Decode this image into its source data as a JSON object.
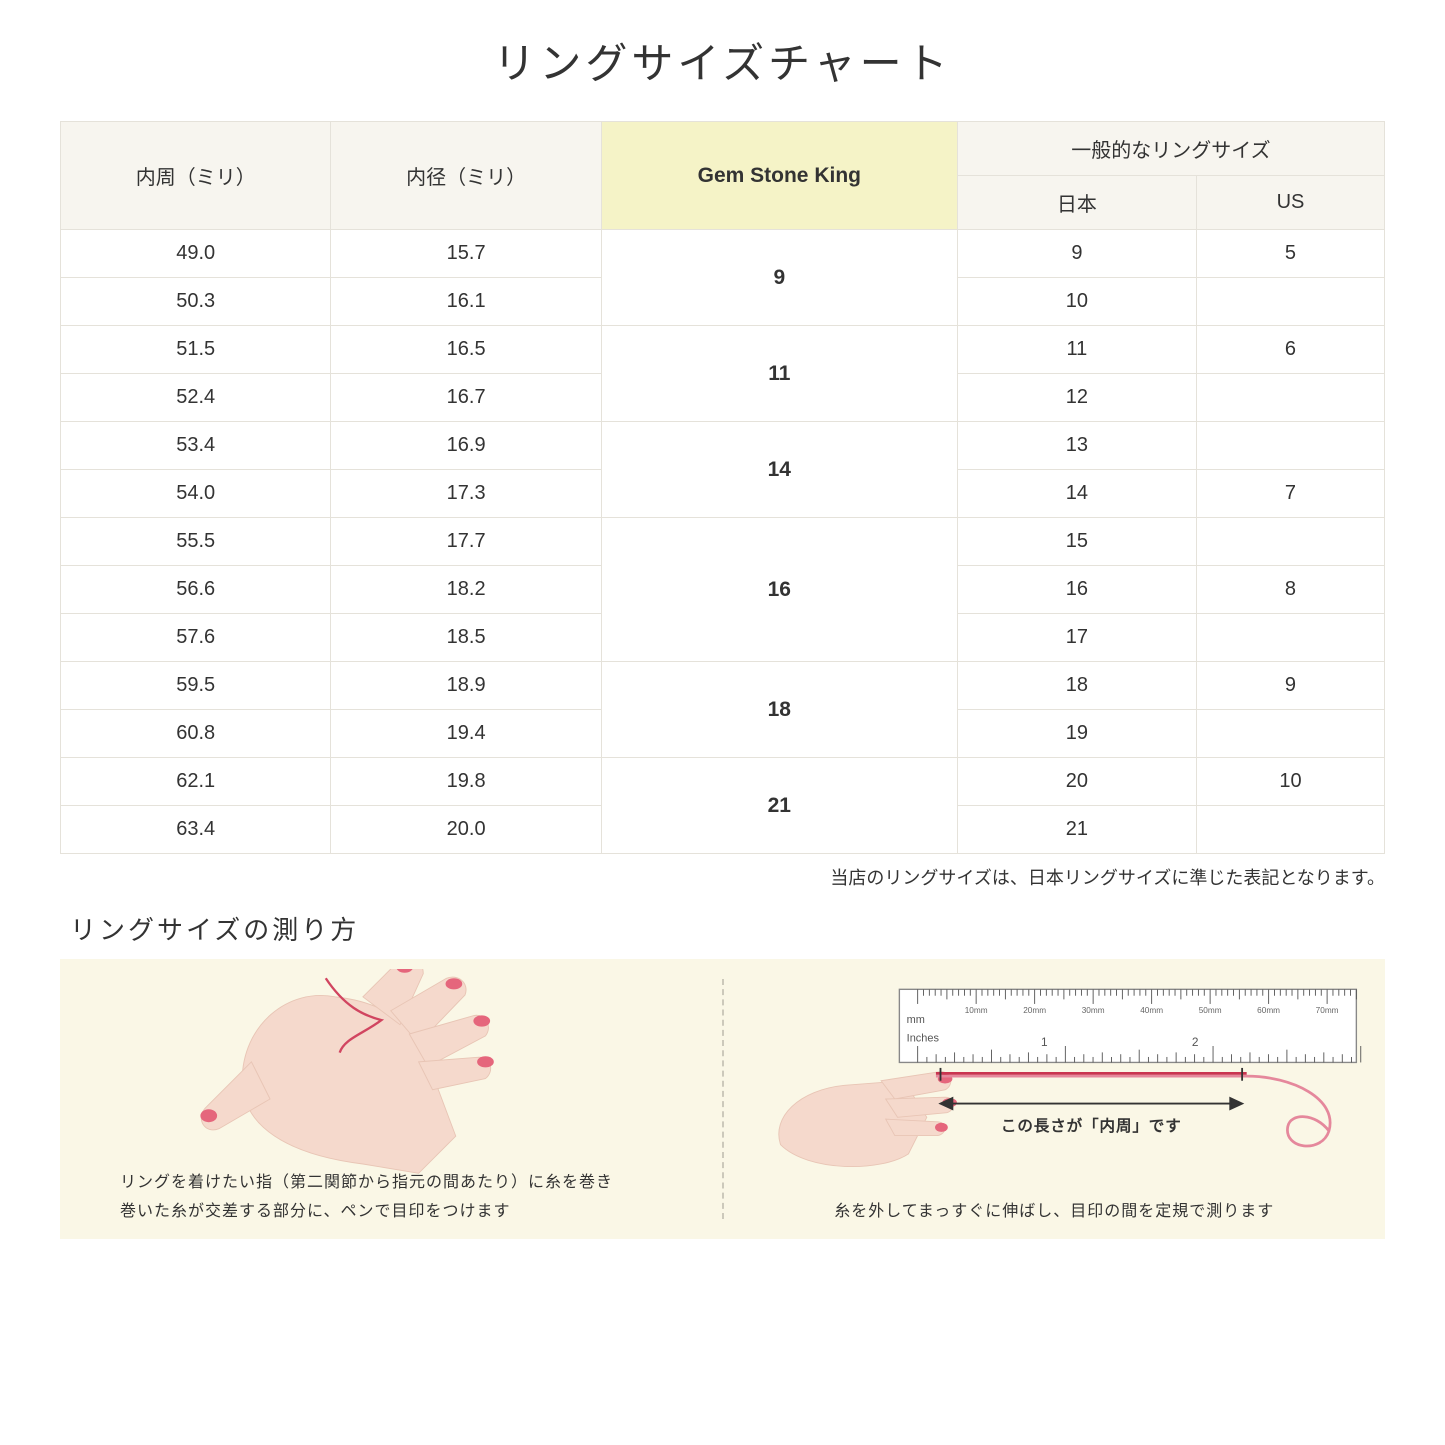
{
  "title": "リングサイズチャート",
  "headers": {
    "circumference": "内周（ミリ）",
    "diameter": "内径（ミリ）",
    "gsk": "Gem Stone King",
    "general": "一般的なリングサイズ",
    "jp": "日本",
    "us": "US"
  },
  "rows": [
    {
      "circ": "49.0",
      "dia": "15.7",
      "gsk": "9",
      "gsk_span": 2,
      "jp": "9",
      "us": "5"
    },
    {
      "circ": "50.3",
      "dia": "16.1",
      "jp": "10",
      "us": ""
    },
    {
      "circ": "51.5",
      "dia": "16.5",
      "gsk": "11",
      "gsk_span": 2,
      "jp": "11",
      "us": "6"
    },
    {
      "circ": "52.4",
      "dia": "16.7",
      "jp": "12",
      "us": ""
    },
    {
      "circ": "53.4",
      "dia": "16.9",
      "gsk": "14",
      "gsk_span": 2,
      "jp": "13",
      "us": ""
    },
    {
      "circ": "54.0",
      "dia": "17.3",
      "jp": "14",
      "us": "7"
    },
    {
      "circ": "55.5",
      "dia": "17.7",
      "gsk": "16",
      "gsk_span": 3,
      "jp": "15",
      "us": ""
    },
    {
      "circ": "56.6",
      "dia": "18.2",
      "jp": "16",
      "us": "8"
    },
    {
      "circ": "57.6",
      "dia": "18.5",
      "jp": "17",
      "us": ""
    },
    {
      "circ": "59.5",
      "dia": "18.9",
      "gsk": "18",
      "gsk_span": 2,
      "jp": "18",
      "us": "9"
    },
    {
      "circ": "60.8",
      "dia": "19.4",
      "jp": "19",
      "us": ""
    },
    {
      "circ": "62.1",
      "dia": "19.8",
      "gsk": "21",
      "gsk_span": 2,
      "jp": "20",
      "us": "10"
    },
    {
      "circ": "63.4",
      "dia": "20.0",
      "jp": "21",
      "us": ""
    }
  ],
  "note": "当店のリングサイズは、日本リングサイズに準じた表記となります。",
  "howto_title": "リングサイズの測り方",
  "panel_left_caption": "リングを着けたい指（第二関節から指元の間あたり）に糸を巻き\n巻いた糸が交差する部分に、ペンで目印をつけます",
  "panel_right_caption": "糸を外してまっすぐに伸ばし、目印の間を定規で測ります",
  "ruler_label_mm": "mm",
  "ruler_label_in": "Inches",
  "ruler_mm_marks": [
    "10mm",
    "20mm",
    "30mm",
    "40mm",
    "50mm",
    "60mm",
    "70mm"
  ],
  "arrow_label": "この長さが「内周」です",
  "colors": {
    "skin": "#f5d9cc",
    "nail": "#e5667c",
    "thread": "#d14560",
    "ruler_border": "#888",
    "panel_bg": "#faf7e6"
  }
}
